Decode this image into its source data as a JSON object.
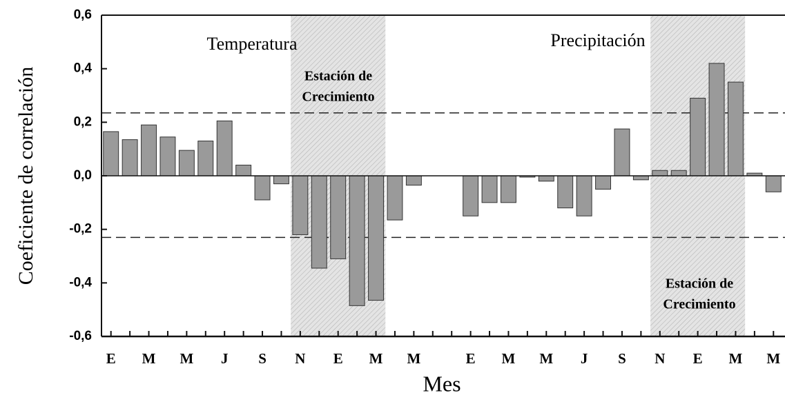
{
  "chart_data": {
    "type": "bar",
    "y_label": "Coeficiente de correlación",
    "x_label": "Mes",
    "categories": [
      "E",
      null,
      "M",
      null,
      "M",
      null,
      "J",
      null,
      "S",
      null,
      "N",
      null,
      "E",
      null,
      "M",
      null,
      "M",
      null,
      null,
      "E",
      null,
      "M",
      null,
      "M",
      null,
      "J",
      null,
      "S",
      null,
      "N",
      null,
      "E",
      null,
      "M",
      null,
      "M"
    ],
    "values": [
      0.165,
      0.135,
      0.19,
      0.145,
      0.095,
      0.13,
      0.205,
      0.04,
      -0.09,
      -0.03,
      -0.22,
      -0.345,
      -0.31,
      -0.485,
      -0.465,
      -0.165,
      -0.035,
      null,
      null,
      -0.15,
      -0.1,
      -0.1,
      -0.005,
      -0.02,
      -0.12,
      -0.15,
      -0.05,
      0.175,
      -0.015,
      0.02,
      0.02,
      0.29,
      0.42,
      0.35,
      0.01,
      -0.06
    ],
    "color": "#9a9a9a",
    "ylim": [
      -0.6,
      0.6
    ],
    "yticks": [
      {
        "value": -0.6,
        "label": "-0,6"
      },
      {
        "value": -0.4,
        "label": "-0,4"
      },
      {
        "value": -0.2,
        "label": "-0,2"
      },
      {
        "value": 0,
        "label": "0,0"
      },
      {
        "value": 0.2,
        "label": "0,2"
      },
      {
        "value": 0.4,
        "label": "0,4"
      },
      {
        "value": 0.6,
        "label": "0,6"
      }
    ],
    "reference_lines": [
      0.235,
      -0.23
    ],
    "shaded_ranges": [
      [
        10,
        14
      ],
      [
        29,
        33
      ]
    ],
    "annotations": [
      {
        "lines": [
          "Temperatura"
        ]
      },
      {
        "lines": [
          "Precipitación"
        ]
      },
      {
        "lines": [
          "Estación de",
          "Crecimiento"
        ]
      },
      {
        "lines": [
          "Estación de",
          "Crecimiento"
        ]
      }
    ]
  }
}
